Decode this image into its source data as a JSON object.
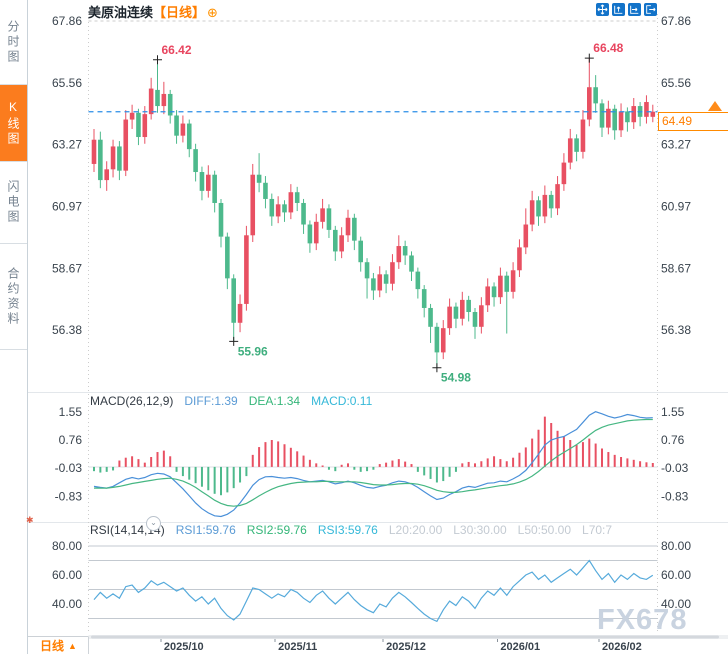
{
  "sidebar": {
    "items": [
      {
        "label": "分时图",
        "selected": false
      },
      {
        "label": "K线图",
        "selected": true
      },
      {
        "label": "闪电图",
        "selected": false
      },
      {
        "label": "合约资料",
        "selected": false
      }
    ]
  },
  "header": {
    "symbol": "美原油连续",
    "period_tag": "【日线】",
    "plus_icon": "⊕"
  },
  "toolbar": {
    "buttons": [
      "move-tool",
      "scale-vertical",
      "scale-horizontal",
      "exit-view"
    ]
  },
  "price_tag": {
    "value": "64.49"
  },
  "macd_header": {
    "title": "MACD(26,12,9)",
    "diff": "DIFF:1.39",
    "dea": "DEA:1.34",
    "macd": "MACD:0.11"
  },
  "rsi_header": {
    "title": "RSI(14,14,14)",
    "rsi1": "RSI1:59.76",
    "rsi2": "RSI2:59.76",
    "rsi3": "RSI3:59.76",
    "l20": "L20:20.00",
    "l30": "L30:30.00",
    "l50": "L50:50.00",
    "l70": "L70:7"
  },
  "footer": {
    "period_label": "日线",
    "up_triangle": "▲",
    "watermark": "FX678"
  },
  "rsi_collapse_glyph": "⌄",
  "gear_glyph": "✱",
  "chart_data": {
    "type": "candlestick",
    "symbol": "美原油连续",
    "period": "日线",
    "current_price": 64.49,
    "y_ticks": [
      "67.86",
      "65.56",
      "63.27",
      "60.97",
      "58.67",
      "56.38"
    ],
    "x_ticks": [
      {
        "label": "2025/10",
        "index": 11
      },
      {
        "label": "2025/11",
        "index": 29
      },
      {
        "label": "2025/12",
        "index": 46
      },
      {
        "label": "2026/01",
        "index": 64
      },
      {
        "label": "2026/02",
        "index": 80
      }
    ],
    "annotations": [
      {
        "label": "66.42",
        "index": 10,
        "pos": "high"
      },
      {
        "label": "55.96",
        "index": 22,
        "pos": "low"
      },
      {
        "label": "54.98",
        "index": 54,
        "pos": "low"
      },
      {
        "label": "66.48",
        "index": 78,
        "pos": "high"
      }
    ],
    "candles": [
      [
        62.55,
        63.85,
        62.25,
        63.45
      ],
      [
        63.45,
        63.75,
        61.65,
        61.95
      ],
      [
        61.95,
        62.65,
        61.55,
        62.35
      ],
      [
        62.35,
        63.45,
        62.05,
        63.2
      ],
      [
        63.2,
        63.4,
        61.95,
        62.3
      ],
      [
        62.3,
        64.55,
        62.1,
        64.2
      ],
      [
        64.2,
        64.75,
        63.85,
        64.45
      ],
      [
        64.45,
        64.6,
        63.25,
        63.55
      ],
      [
        63.55,
        64.7,
        63.3,
        64.4
      ],
      [
        64.4,
        65.75,
        64.2,
        65.35
      ],
      [
        65.3,
        66.42,
        64.45,
        64.7
      ],
      [
        64.7,
        65.6,
        64.4,
        65.15
      ],
      [
        65.15,
        65.3,
        64.05,
        64.35
      ],
      [
        64.35,
        64.55,
        63.3,
        63.6
      ],
      [
        63.6,
        64.35,
        63.35,
        64.05
      ],
      [
        64.05,
        64.2,
        62.8,
        63.1
      ],
      [
        63.1,
        63.3,
        61.9,
        62.25
      ],
      [
        62.25,
        62.45,
        61.2,
        61.55
      ],
      [
        61.55,
        62.5,
        61.3,
        62.15
      ],
      [
        62.15,
        62.3,
        60.75,
        61.1
      ],
      [
        61.1,
        61.25,
        59.45,
        59.85
      ],
      [
        59.85,
        60.0,
        57.9,
        58.3
      ],
      [
        58.3,
        58.45,
        55.96,
        56.65
      ],
      [
        56.65,
        57.7,
        56.3,
        57.35
      ],
      [
        57.35,
        60.25,
        57.1,
        59.9
      ],
      [
        59.9,
        62.55,
        59.65,
        62.15
      ],
      [
        62.15,
        62.95,
        61.5,
        61.85
      ],
      [
        61.85,
        62.1,
        60.9,
        61.25
      ],
      [
        61.25,
        61.45,
        60.25,
        60.6
      ],
      [
        60.6,
        61.35,
        60.35,
        61.05
      ],
      [
        61.05,
        61.2,
        60.4,
        60.75
      ],
      [
        60.75,
        61.8,
        60.5,
        61.5
      ],
      [
        61.5,
        61.7,
        60.8,
        61.1
      ],
      [
        61.1,
        61.25,
        59.95,
        60.3
      ],
      [
        60.3,
        60.45,
        59.25,
        59.6
      ],
      [
        59.6,
        60.7,
        59.35,
        60.4
      ],
      [
        60.4,
        61.25,
        60.15,
        60.9
      ],
      [
        60.9,
        61.05,
        59.8,
        60.1
      ],
      [
        60.1,
        60.25,
        58.95,
        59.3
      ],
      [
        59.3,
        60.2,
        59.05,
        59.9
      ],
      [
        59.9,
        60.85,
        59.65,
        60.55
      ],
      [
        60.55,
        60.7,
        59.35,
        59.7
      ],
      [
        59.7,
        59.85,
        58.55,
        58.9
      ],
      [
        58.9,
        59.05,
        57.55,
        58.3
      ],
      [
        58.3,
        58.5,
        57.5,
        57.85
      ],
      [
        57.85,
        58.75,
        57.6,
        58.45
      ],
      [
        58.45,
        58.6,
        57.75,
        58.1
      ],
      [
        58.1,
        59.2,
        57.85,
        58.9
      ],
      [
        58.9,
        59.9,
        58.65,
        59.5
      ],
      [
        59.5,
        59.7,
        58.8,
        59.15
      ],
      [
        59.15,
        59.3,
        58.2,
        58.55
      ],
      [
        58.55,
        58.7,
        57.55,
        57.9
      ],
      [
        57.9,
        58.05,
        56.85,
        57.2
      ],
      [
        57.2,
        57.35,
        55.9,
        56.5
      ],
      [
        56.5,
        56.65,
        54.98,
        55.55
      ],
      [
        55.55,
        56.75,
        55.3,
        56.45
      ],
      [
        56.45,
        57.55,
        56.2,
        57.25
      ],
      [
        57.25,
        57.4,
        56.45,
        56.8
      ],
      [
        56.8,
        57.8,
        56.55,
        57.5
      ],
      [
        57.5,
        57.65,
        56.7,
        57.05
      ],
      [
        57.05,
        57.2,
        56.05,
        56.5
      ],
      [
        56.5,
        57.6,
        56.25,
        57.3
      ],
      [
        57.3,
        58.3,
        57.05,
        58.0
      ],
      [
        58.0,
        58.15,
        57.25,
        57.6
      ],
      [
        57.6,
        58.7,
        57.35,
        58.4
      ],
      [
        58.4,
        58.55,
        56.25,
        57.8
      ],
      [
        57.8,
        58.9,
        57.55,
        58.6
      ],
      [
        58.6,
        59.75,
        58.35,
        59.45
      ],
      [
        59.45,
        60.9,
        59.2,
        60.3
      ],
      [
        60.3,
        61.55,
        60.05,
        61.2
      ],
      [
        61.2,
        61.35,
        60.25,
        60.6
      ],
      [
        60.6,
        61.75,
        60.35,
        61.4
      ],
      [
        61.4,
        61.55,
        60.55,
        60.9
      ],
      [
        60.9,
        62.1,
        60.65,
        61.8
      ],
      [
        61.8,
        62.95,
        61.55,
        62.6
      ],
      [
        62.6,
        63.85,
        62.35,
        63.5
      ],
      [
        63.5,
        63.65,
        62.65,
        63.0
      ],
      [
        63.0,
        64.55,
        62.75,
        64.2
      ],
      [
        64.2,
        66.48,
        63.95,
        65.4
      ],
      [
        65.4,
        65.85,
        64.45,
        64.8
      ],
      [
        64.8,
        64.95,
        63.55,
        63.9
      ],
      [
        63.9,
        64.9,
        63.65,
        64.6
      ],
      [
        64.6,
        64.75,
        63.45,
        63.8
      ],
      [
        63.8,
        64.8,
        63.55,
        64.5
      ],
      [
        64.5,
        64.65,
        63.75,
        64.1
      ],
      [
        64.1,
        65.0,
        63.85,
        64.7
      ],
      [
        64.7,
        64.85,
        63.95,
        64.3
      ],
      [
        64.3,
        65.1,
        64.05,
        64.85
      ],
      [
        64.3,
        64.75,
        64.1,
        64.49
      ]
    ],
    "macd": {
      "params": "26,12,9",
      "diff_value": 1.39,
      "dea_value": 1.34,
      "macd_value": 0.11,
      "y_ticks": [
        "1.55",
        "0.76",
        "-0.03",
        "-0.83"
      ],
      "hist": [
        -0.12,
        -0.16,
        -0.14,
        -0.1,
        0.18,
        0.26,
        0.3,
        0.22,
        0.12,
        0.28,
        0.42,
        0.46,
        0.3,
        -0.14,
        -0.26,
        -0.36,
        -0.46,
        -0.56,
        -0.66,
        -0.76,
        -0.8,
        -0.72,
        -0.6,
        -0.44,
        -0.26,
        0.34,
        0.56,
        0.7,
        0.76,
        0.72,
        0.64,
        0.54,
        0.44,
        0.32,
        0.2,
        0.1,
        0.04,
        -0.08,
        -0.12,
        0.06,
        0.1,
        -0.08,
        -0.14,
        -0.12,
        -0.08,
        0.08,
        0.12,
        0.18,
        0.22,
        0.15,
        0.08,
        -0.14,
        -0.24,
        -0.34,
        -0.44,
        -0.4,
        -0.28,
        -0.14,
        0.1,
        0.14,
        0.1,
        0.16,
        0.24,
        0.3,
        0.22,
        0.16,
        0.26,
        0.4,
        0.55,
        0.8,
        1.05,
        1.42,
        1.24,
        1.02,
        0.86,
        0.76,
        0.62,
        0.7,
        0.8,
        0.66,
        0.52,
        0.42,
        0.34,
        0.28,
        0.24,
        0.2,
        0.16,
        0.13,
        0.11
      ],
      "diff": [
        -0.55,
        -0.58,
        -0.6,
        -0.55,
        -0.45,
        -0.35,
        -0.3,
        -0.34,
        -0.3,
        -0.22,
        -0.18,
        -0.2,
        -0.28,
        -0.45,
        -0.62,
        -0.82,
        -1.02,
        -1.18,
        -1.3,
        -1.38,
        -1.4,
        -1.34,
        -1.22,
        -1.02,
        -0.78,
        -0.52,
        -0.36,
        -0.28,
        -0.27,
        -0.3,
        -0.32,
        -0.3,
        -0.33,
        -0.38,
        -0.42,
        -0.4,
        -0.38,
        -0.42,
        -0.48,
        -0.45,
        -0.4,
        -0.45,
        -0.52,
        -0.58,
        -0.6,
        -0.55,
        -0.52,
        -0.45,
        -0.4,
        -0.42,
        -0.48,
        -0.58,
        -0.7,
        -0.82,
        -0.92,
        -0.88,
        -0.78,
        -0.7,
        -0.6,
        -0.55,
        -0.58,
        -0.52,
        -0.46,
        -0.45,
        -0.4,
        -0.42,
        -0.34,
        -0.24,
        -0.1,
        0.12,
        0.36,
        0.62,
        0.76,
        0.82,
        0.86,
        0.96,
        1.06,
        1.26,
        1.46,
        1.56,
        1.5,
        1.43,
        1.38,
        1.42,
        1.48,
        1.45,
        1.4,
        1.38,
        1.39
      ],
      "dea": [
        -0.6,
        -0.6,
        -0.6,
        -0.58,
        -0.55,
        -0.51,
        -0.47,
        -0.44,
        -0.41,
        -0.38,
        -0.35,
        -0.33,
        -0.32,
        -0.35,
        -0.4,
        -0.48,
        -0.58,
        -0.7,
        -0.82,
        -0.94,
        -1.03,
        -1.09,
        -1.11,
        -1.09,
        -1.03,
        -0.93,
        -0.82,
        -0.72,
        -0.63,
        -0.56,
        -0.51,
        -0.47,
        -0.44,
        -0.43,
        -0.42,
        -0.42,
        -0.41,
        -0.41,
        -0.42,
        -0.42,
        -0.42,
        -0.42,
        -0.44,
        -0.47,
        -0.5,
        -0.51,
        -0.51,
        -0.5,
        -0.48,
        -0.47,
        -0.47,
        -0.49,
        -0.53,
        -0.59,
        -0.66,
        -0.7,
        -0.72,
        -0.72,
        -0.7,
        -0.67,
        -0.65,
        -0.62,
        -0.59,
        -0.56,
        -0.53,
        -0.51,
        -0.48,
        -0.43,
        -0.36,
        -0.26,
        -0.13,
        0.02,
        0.17,
        0.3,
        0.41,
        0.52,
        0.63,
        0.76,
        0.9,
        1.03,
        1.12,
        1.18,
        1.22,
        1.26,
        1.3,
        1.32,
        1.33,
        1.34,
        1.34
      ]
    },
    "rsi": {
      "params": "14,14,14",
      "rsi1_value": 59.76,
      "rsi2_value": 59.76,
      "rsi3_value": 59.76,
      "y_ticks": [
        "80.00",
        "60.00",
        "40.00"
      ],
      "level_lines": [
        80,
        70,
        50,
        30
      ],
      "series": [
        43,
        48,
        44,
        47,
        44,
        52,
        53,
        48,
        51,
        56,
        53,
        55,
        52,
        49,
        51,
        46,
        42,
        45,
        40,
        44,
        37,
        32,
        29,
        33,
        42,
        51,
        50,
        47,
        44,
        47,
        45,
        50,
        48,
        44,
        41,
        46,
        49,
        44,
        40,
        44,
        48,
        43,
        39,
        36,
        34,
        40,
        38,
        44,
        48,
        45,
        41,
        37,
        33,
        30,
        28,
        36,
        42,
        39,
        45,
        42,
        37,
        44,
        49,
        46,
        51,
        46,
        52,
        56,
        60,
        62,
        57,
        60,
        55,
        58,
        61,
        64,
        60,
        65,
        70,
        63,
        57,
        61,
        55,
        60,
        57,
        61,
        58,
        57,
        59.76
      ]
    },
    "colors": {
      "up": "#e85062",
      "down": "#4db98c",
      "diff_line": "#4a90d9",
      "dea_line": "#46b783",
      "rsi_line": "#56aadb",
      "dashed_price_line": "#2b8fe8",
      "annotation_high": "#e8455f",
      "annotation_low": "#3fae7e",
      "accent_orange": "#ff7e00",
      "axis_text": "#39434d",
      "grid": "#cccccc"
    }
  }
}
